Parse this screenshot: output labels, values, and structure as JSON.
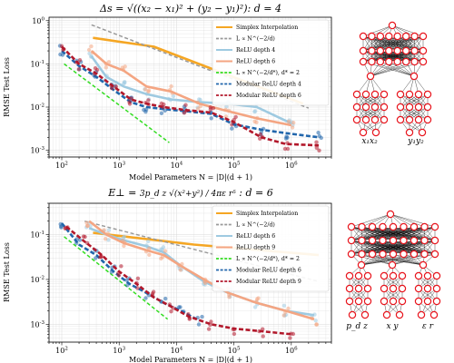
{
  "chart_data": [
    {
      "type": "scatter",
      "title": "Δs = √((x₂ − x₁)² + (y₂ − y₁)²): d = 4",
      "xlabel": "Model Parameters N = |D|(d + 1)",
      "ylabel": "RMSE Test Loss",
      "x_scale": "log",
      "y_scale": "log",
      "xlim": [
        60,
        5000000
      ],
      "ylim": [
        0.0007,
        1.2
      ],
      "grid": true,
      "legend_position": "top-right",
      "series": [
        {
          "name": "Simplex Interpolation",
          "color": "#f5a623",
          "style": "line",
          "x": [
            350,
            4000,
            1600000
          ],
          "y": [
            0.4,
            0.25,
            0.012
          ]
        },
        {
          "name": "L ∝ N^(−2/d)",
          "color": "#999999",
          "style": "dashed",
          "x": [
            330,
            2000000
          ],
          "y": [
            0.8,
            0.0095
          ]
        },
        {
          "name": "ReLU depth 4",
          "color": "#9ecae1",
          "style": "line",
          "x": [
            330,
            600,
            1200,
            3000,
            8000,
            25000,
            80000,
            250000,
            1000000
          ],
          "y": [
            0.15,
            0.05,
            0.03,
            0.02,
            0.015,
            0.013,
            0.012,
            0.01,
            0.0042
          ]
        },
        {
          "name": "ReLU depth 6",
          "color": "#f4a582",
          "style": "line",
          "x": [
            330,
            600,
            1200,
            3000,
            8000,
            25000,
            80000,
            250000,
            1000000
          ],
          "y": [
            0.2,
            0.1,
            0.07,
            0.03,
            0.023,
            0.012,
            0.008,
            0.0055,
            0.0038
          ]
        },
        {
          "name": "L ∝ N^(−2/d*), d* = 2",
          "color": "#33dd22",
          "style": "dashed",
          "x": [
            110,
            7500
          ],
          "y": [
            0.1,
            0.0015
          ]
        },
        {
          "name": "Modular ReLU depth 4",
          "color": "#2166ac",
          "style": "dashed",
          "x": [
            100,
            200,
            400,
            800,
            1600,
            3000,
            6000,
            15000,
            40000,
            100000,
            300000,
            800000,
            3000000
          ],
          "y": [
            0.2,
            0.09,
            0.05,
            0.025,
            0.013,
            0.01,
            0.009,
            0.008,
            0.007,
            0.004,
            0.003,
            0.0025,
            0.002
          ]
        },
        {
          "name": "Modular ReLU depth 6",
          "color": "#b2182b",
          "style": "dashed",
          "x": [
            100,
            200,
            400,
            800,
            1600,
            3000,
            6000,
            15000,
            40000,
            100000,
            300000,
            800000,
            3000000
          ],
          "y": [
            0.25,
            0.1,
            0.06,
            0.03,
            0.015,
            0.012,
            0.01,
            0.0085,
            0.0075,
            0.0045,
            0.002,
            0.0014,
            0.0013
          ]
        }
      ]
    },
    {
      "type": "scatter",
      "title": "E⊥ = 3p_d z √(x² + y²) / (4πε r⁵): d = 6",
      "xlabel": "Model Parameters N = |D|(d + 1)",
      "ylabel": "RMSE Test Loss",
      "x_scale": "log",
      "y_scale": "log",
      "xlim": [
        60,
        5000000
      ],
      "ylim": [
        0.0004,
        0.5
      ],
      "grid": true,
      "legend_position": "top-right",
      "series": [
        {
          "name": "Simplex Interpolation",
          "color": "#f5a623",
          "style": "line",
          "x": [
            350,
            20000,
            3000000
          ],
          "y": [
            0.11,
            0.06,
            0.035
          ]
        },
        {
          "name": "L ∝ N^(−2/d)",
          "color": "#999999",
          "style": "dashed",
          "x": [
            250,
            3000000
          ],
          "y": [
            0.2,
            0.009
          ]
        },
        {
          "name": "ReLU depth 6",
          "color": "#9ecae1",
          "style": "line",
          "x": [
            300,
            600,
            1200,
            3000,
            6000,
            12000,
            30000,
            80000,
            250000,
            800000,
            2500000
          ],
          "y": [
            0.14,
            0.1,
            0.075,
            0.055,
            0.04,
            0.02,
            0.009,
            0.005,
            0.003,
            0.002,
            0.0016
          ]
        },
        {
          "name": "ReLU depth 9",
          "color": "#f4a582",
          "style": "line",
          "x": [
            300,
            600,
            1200,
            3000,
            6000,
            12000,
            30000,
            80000,
            250000,
            800000,
            2500000
          ],
          "y": [
            0.2,
            0.1,
            0.065,
            0.045,
            0.035,
            0.02,
            0.01,
            0.005,
            0.003,
            0.002,
            0.0013
          ]
        },
        {
          "name": "L ∝ N^(−2/d*), d* = 2",
          "color": "#33dd22",
          "style": "dashed",
          "x": [
            110,
            7000
          ],
          "y": [
            0.09,
            0.0013
          ]
        },
        {
          "name": "Modular ReLU depth 6",
          "color": "#2166ac",
          "style": "dashed",
          "x": [
            100,
            200,
            400,
            800,
            1500,
            3000,
            6000,
            12000,
            25000
          ],
          "y": [
            0.18,
            0.06,
            0.035,
            0.015,
            0.008,
            0.005,
            0.003,
            0.002,
            0.0012
          ]
        },
        {
          "name": "Modular ReLU depth 9",
          "color": "#b2182b",
          "style": "dashed",
          "x": [
            120,
            250,
            500,
            1000,
            2000,
            4000,
            8000,
            16000,
            40000,
            100000,
            300000,
            1000000
          ],
          "y": [
            0.15,
            0.07,
            0.035,
            0.015,
            0.008,
            0.004,
            0.0025,
            0.0015,
            0.001,
            0.0008,
            0.0007,
            0.0006
          ]
        }
      ]
    }
  ],
  "panels": [
    {
      "title": "Δs = √((x₂ − x₁)² + (y₂ − y₁)²): d = 4",
      "xlabel": "Model Parameters N = |D|(d + 1)",
      "ylabel": "RMSE Test Loss"
    },
    {
      "title_prefix": "E⊥ = ",
      "title_formula": "3p_d z √(x²+y²) / 4πε r⁵",
      "title_suffix": ": d = 6",
      "xlabel": "Model Parameters N = |D|(d + 1)",
      "ylabel": "RMSE Test Loss"
    }
  ],
  "networks": [
    {
      "input_labels": [
        "x₁x₂",
        "y₁y₂"
      ]
    },
    {
      "input_labels": [
        "p_d z",
        "x  y",
        "ε  r"
      ]
    }
  ]
}
